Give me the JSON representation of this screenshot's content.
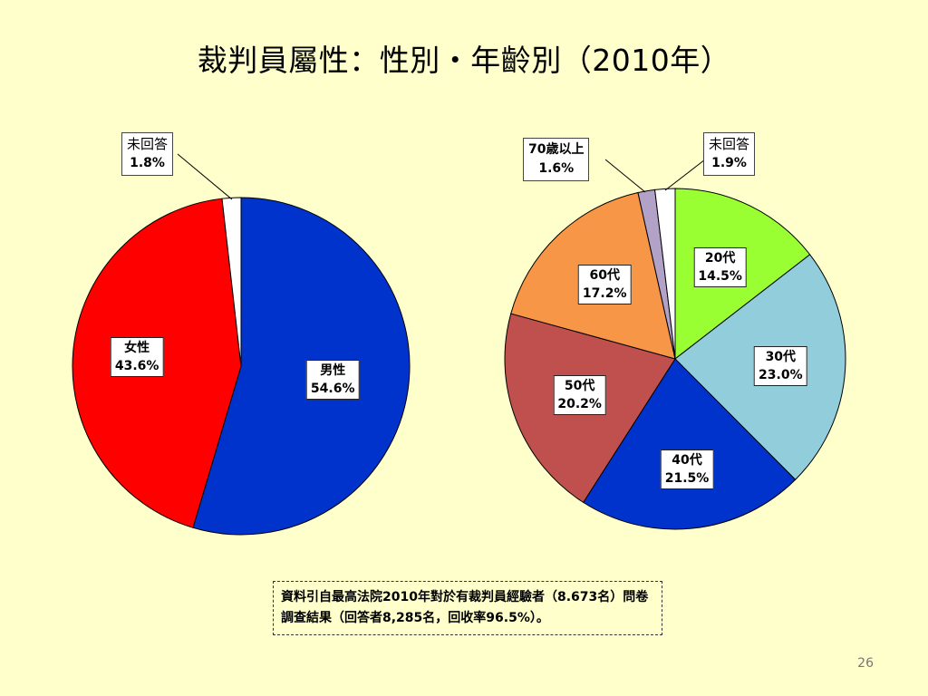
{
  "title": "裁判員屬性：性別・年齡別（2010年）",
  "chart_data": [
    {
      "type": "pie",
      "title": "",
      "slices": [
        {
          "label": "男性",
          "value": 54.6,
          "pct": "54.6%",
          "color": "#0033CC"
        },
        {
          "label": "女性",
          "value": 43.6,
          "pct": "43.6%",
          "color": "#FF0000"
        },
        {
          "label": "未回答",
          "value": 1.8,
          "pct": "1.8%",
          "color": "#FFFFFF"
        }
      ]
    },
    {
      "type": "pie",
      "title": "",
      "slices": [
        {
          "label": "20代",
          "value": 14.5,
          "pct": "14.5%",
          "color": "#99FF33"
        },
        {
          "label": "30代",
          "value": 23.0,
          "pct": "23.0%",
          "color": "#92CDDC"
        },
        {
          "label": "40代",
          "value": 21.5,
          "pct": "21.5%",
          "color": "#0033CC"
        },
        {
          "label": "50代",
          "value": 20.2,
          "pct": "20.2%",
          "color": "#C0504D"
        },
        {
          "label": "60代",
          "value": 17.2,
          "pct": "17.2%",
          "color": "#F79646"
        },
        {
          "label": "70歳以上",
          "value": 1.6,
          "pct": "1.6%",
          "color": "#B3A2C7"
        },
        {
          "label": "未回答",
          "value": 1.9,
          "pct": "1.9%",
          "color": "#FFFFFF"
        }
      ]
    }
  ],
  "note": "資料引自最高法院2010年對於有裁判員經驗者（8.673名）問卷調查結果（回答者8,285名，回收率96.5%）。",
  "page_number": "26"
}
